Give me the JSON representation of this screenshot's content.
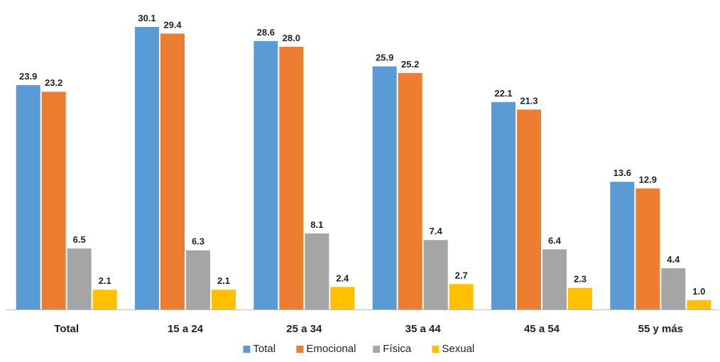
{
  "chart_data": {
    "type": "bar",
    "categories": [
      "Total",
      "15 a 24",
      "25 a 34",
      "35 a 44",
      "45 a 54",
      "55 y más"
    ],
    "series": [
      {
        "name": "Total",
        "color": "#5b9bd5",
        "values": [
          23.9,
          30.1,
          28.6,
          25.9,
          22.1,
          13.6
        ]
      },
      {
        "name": "Emocional",
        "color": "#ed7d31",
        "values": [
          23.2,
          29.4,
          28.0,
          25.2,
          21.3,
          12.9
        ]
      },
      {
        "name": "Física",
        "color": "#a5a5a5",
        "values": [
          6.5,
          6.3,
          8.1,
          7.4,
          6.4,
          4.4
        ]
      },
      {
        "name": "Sexual",
        "color": "#ffc000",
        "values": [
          2.1,
          2.1,
          2.4,
          2.7,
          2.3,
          1.0
        ]
      }
    ],
    "title": "",
    "xlabel": "",
    "ylabel": "",
    "ylim": [
      0,
      32
    ],
    "grid": false,
    "legend_position": "bottom",
    "axis_color": "#bfbfbf"
  }
}
